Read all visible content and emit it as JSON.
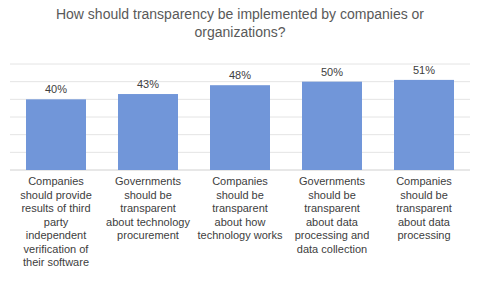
{
  "chart_data": {
    "type": "bar",
    "title": "How should transparency be implemented by companies or organizations?",
    "categories": [
      "Companies should provide results of third party independent verification of their software",
      "Governments should be transparent about technology procurement",
      "Companies should be transparent about how technology works",
      "Governments should be transparent about data processing and data collection",
      "Companies should be transparent about data processing"
    ],
    "values": [
      40,
      43,
      48,
      50,
      51
    ],
    "value_labels": [
      "40%",
      "43%",
      "48%",
      "50%",
      "51%"
    ],
    "color": "#7196d9",
    "ylim": [
      0,
      60
    ],
    "yticks": [
      0,
      10,
      20,
      30,
      40,
      50,
      60
    ],
    "grid": true,
    "data_labels": true,
    "tick_labels": false
  }
}
